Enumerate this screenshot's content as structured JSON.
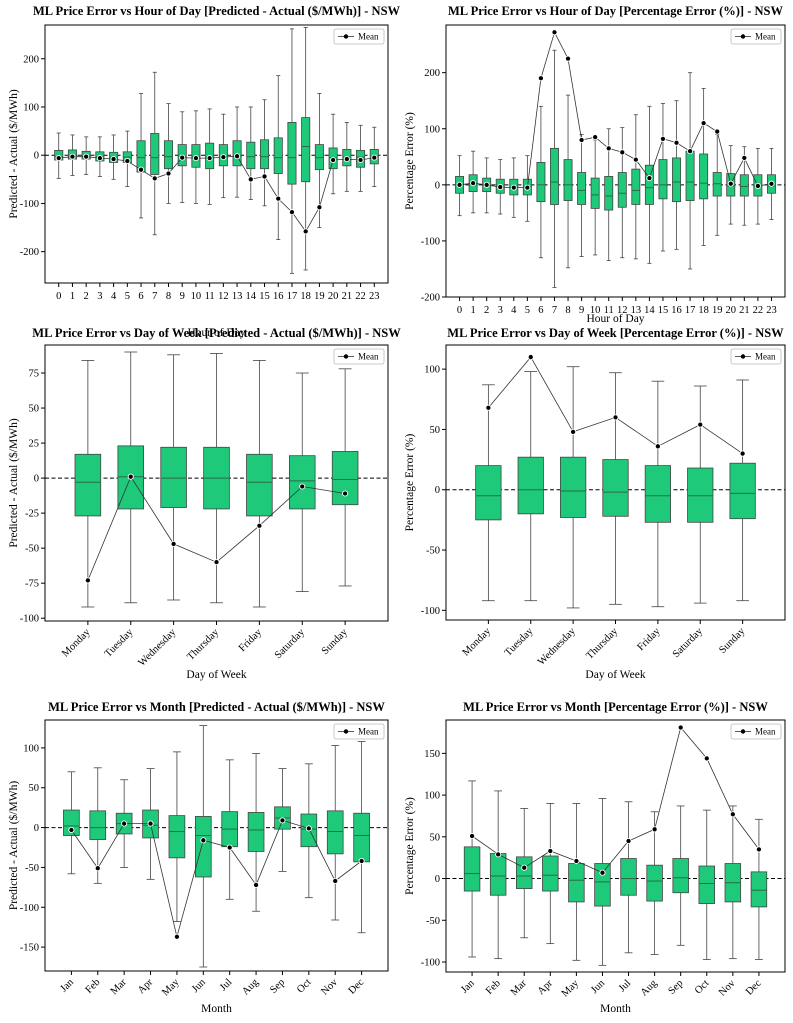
{
  "colors": {
    "box_fill": "#1ec97a",
    "box_edge": "#444444",
    "median": "#2a6b4a",
    "mean_line": "#333333",
    "zero_line": "#000000"
  },
  "chart_data": [
    {
      "id": "hour_abs",
      "type": "box",
      "title": "ML Price Error vs Hour of Day [Predicted - Actual ($/MWh)] - NSW",
      "xlabel": "Hour of Day",
      "ylabel": "Predicted - Actual ($/MWh)",
      "ylim": [
        -265,
        270
      ],
      "yticks": [
        -200,
        -100,
        0,
        100,
        200
      ],
      "rotate_xticks": false,
      "legend": "Mean",
      "legend_position": "top-right",
      "categories": [
        "0",
        "1",
        "2",
        "3",
        "4",
        "5",
        "6",
        "7",
        "8",
        "9",
        "10",
        "11",
        "12",
        "13",
        "14",
        "15",
        "16",
        "17",
        "18",
        "19",
        "20",
        "21",
        "22",
        "23"
      ],
      "boxes": [
        {
          "wl": -48,
          "q1": -10,
          "med": -3,
          "q3": 10,
          "wh": 46,
          "mean": -6
        },
        {
          "wl": -42,
          "q1": -8,
          "med": -2,
          "q3": 11,
          "wh": 42,
          "mean": -3
        },
        {
          "wl": -40,
          "q1": -8,
          "med": -2,
          "q3": 8,
          "wh": 38,
          "mean": -3
        },
        {
          "wl": -44,
          "q1": -12,
          "med": -3,
          "q3": 7,
          "wh": 38,
          "mean": -6
        },
        {
          "wl": -50,
          "q1": -15,
          "med": -4,
          "q3": 6,
          "wh": 42,
          "mean": -8
        },
        {
          "wl": -65,
          "q1": -15,
          "med": -4,
          "q3": 7,
          "wh": 50,
          "mean": -12
        },
        {
          "wl": -130,
          "q1": -35,
          "med": -5,
          "q3": 30,
          "wh": 128,
          "mean": -30
        },
        {
          "wl": -165,
          "q1": -40,
          "med": -5,
          "q3": 45,
          "wh": 172,
          "mean": -48
        },
        {
          "wl": -100,
          "q1": -28,
          "med": -3,
          "q3": 30,
          "wh": 107,
          "mean": -38
        },
        {
          "wl": -98,
          "q1": -22,
          "med": -3,
          "q3": 22,
          "wh": 90,
          "mean": -5
        },
        {
          "wl": -100,
          "q1": -25,
          "med": -3,
          "q3": 22,
          "wh": 92,
          "mean": -6
        },
        {
          "wl": -102,
          "q1": -28,
          "med": -4,
          "q3": 25,
          "wh": 96,
          "mean": -6
        },
        {
          "wl": -88,
          "q1": -22,
          "med": -3,
          "q3": 22,
          "wh": 85,
          "mean": -4
        },
        {
          "wl": -87,
          "q1": -22,
          "med": -2,
          "q3": 30,
          "wh": 100,
          "mean": -2
        },
        {
          "wl": -92,
          "q1": -28,
          "med": -3,
          "q3": 27,
          "wh": 100,
          "mean": -50
        },
        {
          "wl": -105,
          "q1": -28,
          "med": -3,
          "q3": 32,
          "wh": 115,
          "mean": -44
        },
        {
          "wl": -175,
          "q1": -38,
          "med": -5,
          "q3": 36,
          "wh": 165,
          "mean": -90
        },
        {
          "wl": -245,
          "q1": -60,
          "med": -5,
          "q3": 68,
          "wh": 262,
          "mean": -118
        },
        {
          "wl": -238,
          "q1": -55,
          "med": 18,
          "q3": 78,
          "wh": 265,
          "mean": -158
        },
        {
          "wl": -150,
          "q1": -30,
          "med": -5,
          "q3": 22,
          "wh": 128,
          "mean": -108
        },
        {
          "wl": -80,
          "q1": -28,
          "med": -5,
          "q3": 15,
          "wh": 85,
          "mean": -10
        },
        {
          "wl": -75,
          "q1": -22,
          "med": -4,
          "q3": 12,
          "wh": 68,
          "mean": -8
        },
        {
          "wl": -75,
          "q1": -25,
          "med": -4,
          "q3": 10,
          "wh": 62,
          "mean": -10
        },
        {
          "wl": -65,
          "q1": -18,
          "med": -3,
          "q3": 12,
          "wh": 58,
          "mean": -5
        }
      ]
    },
    {
      "id": "hour_pct",
      "type": "box",
      "title": "ML Price Error vs Hour of Day [Percentage Error (%)] - NSW",
      "xlabel": "Hour of Day",
      "ylabel": "Percentage Error (%)",
      "ylim": [
        -200,
        285
      ],
      "yticks": [
        -200,
        -100,
        0,
        100,
        200
      ],
      "rotate_xticks": false,
      "legend": "Mean",
      "legend_position": "top-right",
      "categories": [
        "0",
        "1",
        "2",
        "3",
        "4",
        "5",
        "6",
        "7",
        "8",
        "9",
        "10",
        "11",
        "12",
        "13",
        "14",
        "15",
        "16",
        "17",
        "18",
        "19",
        "20",
        "21",
        "22",
        "23"
      ],
      "boxes": [
        {
          "wl": -55,
          "q1": -15,
          "med": 0,
          "q3": 15,
          "wh": 52,
          "mean": 0
        },
        {
          "wl": -50,
          "q1": -12,
          "med": 0,
          "q3": 18,
          "wh": 60,
          "mean": 3
        },
        {
          "wl": -50,
          "q1": -12,
          "med": -1,
          "q3": 12,
          "wh": 48,
          "mean": 0
        },
        {
          "wl": -52,
          "q1": -15,
          "med": -2,
          "q3": 10,
          "wh": 45,
          "mean": -4
        },
        {
          "wl": -58,
          "q1": -18,
          "med": -3,
          "q3": 10,
          "wh": 48,
          "mean": -5
        },
        {
          "wl": -65,
          "q1": -18,
          "med": -3,
          "q3": 10,
          "wh": 52,
          "mean": -5
        },
        {
          "wl": -130,
          "q1": -30,
          "med": 0,
          "q3": 40,
          "wh": 140,
          "mean": 190
        },
        {
          "wl": -183,
          "q1": -35,
          "med": 5,
          "q3": 65,
          "wh": 240,
          "mean": 272
        },
        {
          "wl": -148,
          "q1": -28,
          "med": 0,
          "q3": 45,
          "wh": 160,
          "mean": 225
        },
        {
          "wl": -128,
          "q1": -35,
          "med": -10,
          "q3": 22,
          "wh": 90,
          "mean": 80
        },
        {
          "wl": -125,
          "q1": -42,
          "med": -18,
          "q3": 12,
          "wh": 80,
          "mean": 85
        },
        {
          "wl": -135,
          "q1": -45,
          "med": -20,
          "q3": 15,
          "wh": 100,
          "mean": 65
        },
        {
          "wl": -130,
          "q1": -40,
          "med": -15,
          "q3": 22,
          "wh": 102,
          "mean": 58
        },
        {
          "wl": -132,
          "q1": -35,
          "med": -10,
          "q3": 28,
          "wh": 125,
          "mean": 45
        },
        {
          "wl": -140,
          "q1": -35,
          "med": -5,
          "q3": 35,
          "wh": 140,
          "mean": 12
        },
        {
          "wl": -118,
          "q1": -25,
          "med": 0,
          "q3": 45,
          "wh": 145,
          "mean": 82
        },
        {
          "wl": -115,
          "q1": -30,
          "med": 5,
          "q3": 48,
          "wh": 150,
          "mean": 75
        },
        {
          "wl": -150,
          "q1": -28,
          "med": 5,
          "q3": 60,
          "wh": 200,
          "mean": 60
        },
        {
          "wl": -108,
          "q1": -25,
          "med": 3,
          "q3": 55,
          "wh": 172,
          "mean": 110
        },
        {
          "wl": -90,
          "q1": -20,
          "med": 2,
          "q3": 22,
          "wh": 90,
          "mean": 95
        },
        {
          "wl": -70,
          "q1": -20,
          "med": -2,
          "q3": 20,
          "wh": 70,
          "mean": 2
        },
        {
          "wl": -72,
          "q1": -20,
          "med": -3,
          "q3": 18,
          "wh": 68,
          "mean": 48
        },
        {
          "wl": -70,
          "q1": -20,
          "med": -3,
          "q3": 18,
          "wh": 65,
          "mean": -2
        },
        {
          "wl": -62,
          "q1": -15,
          "med": -2,
          "q3": 18,
          "wh": 65,
          "mean": 2
        }
      ]
    },
    {
      "id": "dow_abs",
      "type": "box",
      "title": "ML Price Error vs Day of Week [Predicted - Actual ($/MWh)] - NSW",
      "xlabel": "Day of Week",
      "ylabel": "Predicted - Actual ($/MWh)",
      "ylim": [
        -102,
        95
      ],
      "yticks": [
        -100,
        -75,
        -50,
        -25,
        0,
        25,
        50,
        75
      ],
      "rotate_xticks": true,
      "legend": "Mean",
      "legend_position": "top-right",
      "categories": [
        "Monday",
        "Tuesday",
        "Wednesday",
        "Thursday",
        "Friday",
        "Saturday",
        "Sunday"
      ],
      "boxes": [
        {
          "wl": -92,
          "q1": -27,
          "med": -3,
          "q3": 17,
          "wh": 84,
          "mean": -73
        },
        {
          "wl": -89,
          "q1": -22,
          "med": 1,
          "q3": 23,
          "wh": 90,
          "mean": 1
        },
        {
          "wl": -87,
          "q1": -21,
          "med": 0,
          "q3": 22,
          "wh": 88,
          "mean": -47
        },
        {
          "wl": -89,
          "q1": -22,
          "med": 0,
          "q3": 22,
          "wh": 89,
          "mean": -60
        },
        {
          "wl": -92,
          "q1": -27,
          "med": -3,
          "q3": 17,
          "wh": 84,
          "mean": -34
        },
        {
          "wl": -81,
          "q1": -22,
          "med": -2,
          "q3": 16,
          "wh": 75,
          "mean": -6
        },
        {
          "wl": -77,
          "q1": -19,
          "med": -1,
          "q3": 19,
          "wh": 78,
          "mean": -11
        }
      ]
    },
    {
      "id": "dow_pct",
      "type": "box",
      "title": "ML Price Error vs Day of Week [Percentage Error (%)] - NSW",
      "xlabel": "Day of Week",
      "ylabel": "Percentage Error (%)",
      "ylim": [
        -108,
        120
      ],
      "yticks": [
        -100,
        -50,
        0,
        50,
        100
      ],
      "rotate_xticks": true,
      "legend": "Mean",
      "legend_position": "top-right",
      "categories": [
        "Monday",
        "Tuesday",
        "Wednesday",
        "Thursday",
        "Friday",
        "Saturday",
        "Sunday"
      ],
      "boxes": [
        {
          "wl": -92,
          "q1": -25,
          "med": -5,
          "q3": 20,
          "wh": 87,
          "mean": 68
        },
        {
          "wl": -92,
          "q1": -20,
          "med": 0,
          "q3": 27,
          "wh": 98,
          "mean": 110
        },
        {
          "wl": -98,
          "q1": -23,
          "med": -1,
          "q3": 27,
          "wh": 102,
          "mean": 48
        },
        {
          "wl": -95,
          "q1": -22,
          "med": -2,
          "q3": 25,
          "wh": 97,
          "mean": 60
        },
        {
          "wl": -97,
          "q1": -27,
          "med": -5,
          "q3": 20,
          "wh": 90,
          "mean": 36
        },
        {
          "wl": -94,
          "q1": -27,
          "med": -5,
          "q3": 18,
          "wh": 86,
          "mean": 54
        },
        {
          "wl": -92,
          "q1": -24,
          "med": -3,
          "q3": 22,
          "wh": 91,
          "mean": 30
        }
      ]
    },
    {
      "id": "month_abs",
      "type": "box",
      "title": "ML Price Error vs Month [Predicted - Actual ($/MWh)] - NSW",
      "xlabel": "Month",
      "ylabel": "Predicted - Actual ($/MWh)",
      "ylim": [
        -180,
        135
      ],
      "yticks": [
        -150,
        -100,
        -50,
        0,
        50,
        100
      ],
      "rotate_xticks": true,
      "legend": "Mean",
      "legend_position": "top-right",
      "categories": [
        "Jan",
        "Feb",
        "Mar",
        "Apr",
        "May",
        "Jun",
        "Jul",
        "Aug",
        "Sep",
        "Oct",
        "Nov",
        "Dec"
      ],
      "boxes": [
        {
          "wl": -58,
          "q1": -10,
          "med": 2,
          "q3": 22,
          "wh": 70,
          "mean": -3
        },
        {
          "wl": -70,
          "q1": -15,
          "med": 0,
          "q3": 21,
          "wh": 75,
          "mean": -51
        },
        {
          "wl": -50,
          "q1": -8,
          "med": 5,
          "q3": 18,
          "wh": 60,
          "mean": 5
        },
        {
          "wl": -65,
          "q1": -13,
          "med": 3,
          "q3": 22,
          "wh": 74,
          "mean": 5
        },
        {
          "wl": -118,
          "q1": -38,
          "med": -5,
          "q3": 15,
          "wh": 95,
          "mean": -137
        },
        {
          "wl": -175,
          "q1": -62,
          "med": -10,
          "q3": 14,
          "wh": 128,
          "mean": -16
        },
        {
          "wl": -90,
          "q1": -24,
          "med": -2,
          "q3": 20,
          "wh": 85,
          "mean": -25
        },
        {
          "wl": -105,
          "q1": -30,
          "med": -3,
          "q3": 19,
          "wh": 93,
          "mean": -72
        },
        {
          "wl": -55,
          "q1": -2,
          "med": 12,
          "q3": 26,
          "wh": 74,
          "mean": 9
        },
        {
          "wl": -88,
          "q1": -24,
          "med": -2,
          "q3": 17,
          "wh": 80,
          "mean": -1
        },
        {
          "wl": -116,
          "q1": -33,
          "med": -5,
          "q3": 21,
          "wh": 103,
          "mean": -67
        },
        {
          "wl": -132,
          "q1": -43,
          "med": -10,
          "q3": 18,
          "wh": 108,
          "mean": -42
        }
      ]
    },
    {
      "id": "month_pct",
      "type": "box",
      "title": "ML Price Error vs Month [Percentage Error (%)] - NSW",
      "xlabel": "Month",
      "ylabel": "Percentage Error (%)",
      "ylim": [
        -112,
        190
      ],
      "yticks": [
        -100,
        -50,
        0,
        50,
        100,
        150
      ],
      "rotate_xticks": true,
      "legend": "Mean",
      "legend_position": "top-right",
      "categories": [
        "Jan",
        "Feb",
        "Mar",
        "Apr",
        "May",
        "Jun",
        "Jul",
        "Aug",
        "Sep",
        "Oct",
        "Nov",
        "Dec"
      ],
      "boxes": [
        {
          "wl": -94,
          "q1": -15,
          "med": 6,
          "q3": 38,
          "wh": 117,
          "mean": 51
        },
        {
          "wl": -96,
          "q1": -20,
          "med": 3,
          "q3": 30,
          "wh": 105,
          "mean": 29
        },
        {
          "wl": -71,
          "q1": -12,
          "med": 3,
          "q3": 26,
          "wh": 84,
          "mean": 13
        },
        {
          "wl": -78,
          "q1": -15,
          "med": 4,
          "q3": 27,
          "wh": 90,
          "mean": 33
        },
        {
          "wl": -98,
          "q1": -28,
          "med": -2,
          "q3": 18,
          "wh": 90,
          "mean": 21
        },
        {
          "wl": -104,
          "q1": -33,
          "med": -4,
          "q3": 18,
          "wh": 96,
          "mean": 7
        },
        {
          "wl": -89,
          "q1": -20,
          "med": 0,
          "q3": 24,
          "wh": 92,
          "mean": 45
        },
        {
          "wl": -91,
          "q1": -27,
          "med": -3,
          "q3": 16,
          "wh": 80,
          "mean": 59
        },
        {
          "wl": -80,
          "q1": -17,
          "med": 1,
          "q3": 24,
          "wh": 87,
          "mean": 181
        },
        {
          "wl": -97,
          "q1": -30,
          "med": -6,
          "q3": 15,
          "wh": 82,
          "mean": 144
        },
        {
          "wl": -96,
          "q1": -28,
          "med": -5,
          "q3": 18,
          "wh": 87,
          "mean": 77
        },
        {
          "wl": -97,
          "q1": -34,
          "med": -14,
          "q3": 8,
          "wh": 71,
          "mean": 35
        }
      ]
    }
  ]
}
